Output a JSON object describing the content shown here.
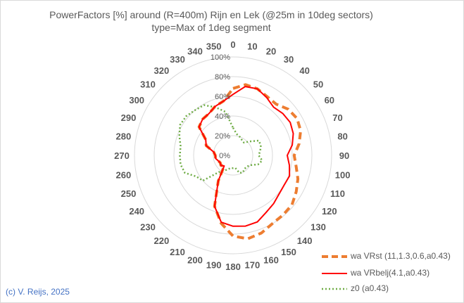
{
  "chart_data": {
    "type": "radar",
    "title": "PowerFactors [%] around (R=400m) Rijn en Lek (@25m in 10deg sectors)",
    "subtitle": "type=Max of 1deg segment",
    "angle_labels": [
      "0",
      "10",
      "20",
      "30",
      "40",
      "50",
      "60",
      "70",
      "80",
      "90",
      "100",
      "110",
      "120",
      "130",
      "140",
      "150",
      "160",
      "170",
      "180",
      "190",
      "200",
      "210",
      "220",
      "230",
      "240",
      "250",
      "260",
      "270",
      "280",
      "290",
      "300",
      "310",
      "320",
      "330",
      "340",
      "350"
    ],
    "radial_tick_labels": [
      "0%",
      "20%",
      "40%",
      "60%",
      "80%",
      "100%"
    ],
    "radial_range": [
      0,
      100
    ],
    "legend_position": "bottom-right",
    "series": [
      {
        "name": "wa VRst (11,1.3,0.6,a0.43)",
        "color": "#ed7d31",
        "style": "dashed",
        "values": [
          68,
          73,
          72,
          69,
          68,
          73,
          75,
          73,
          68,
          62,
          65,
          70,
          74,
          78,
          79,
          80,
          84,
          86,
          82,
          70,
          55,
          30,
          14,
          16,
          15,
          16,
          18,
          18,
          20,
          29,
          32,
          45,
          48,
          49,
          53,
          56
        ]
      },
      {
        "name": "wa VRbelj(4.1,a0.43)",
        "color": "#ff0000",
        "style": "solid",
        "values": [
          62,
          71,
          72,
          68,
          64,
          66,
          67,
          65,
          61,
          55,
          58,
          61,
          60,
          61,
          64,
          67,
          72,
          73,
          72,
          69,
          55,
          30,
          14,
          16,
          15,
          16,
          18,
          18,
          20,
          29,
          32,
          45,
          48,
          49,
          53,
          56
        ]
      },
      {
        "name": "z0 (a0.43)",
        "color": "#70ad47",
        "style": "dotted",
        "values": [
          28,
          22,
          20,
          18,
          17,
          22,
          30,
          30,
          28,
          26,
          30,
          27,
          20,
          18,
          18,
          20,
          19,
          13,
          13,
          13,
          15,
          18,
          22,
          40,
          43,
          52,
          54,
          54,
          54,
          58,
          62,
          62,
          60,
          59,
          52,
          45
        ]
      }
    ]
  },
  "footer": {
    "copyright": "(c) V. Reijs, 2025"
  }
}
